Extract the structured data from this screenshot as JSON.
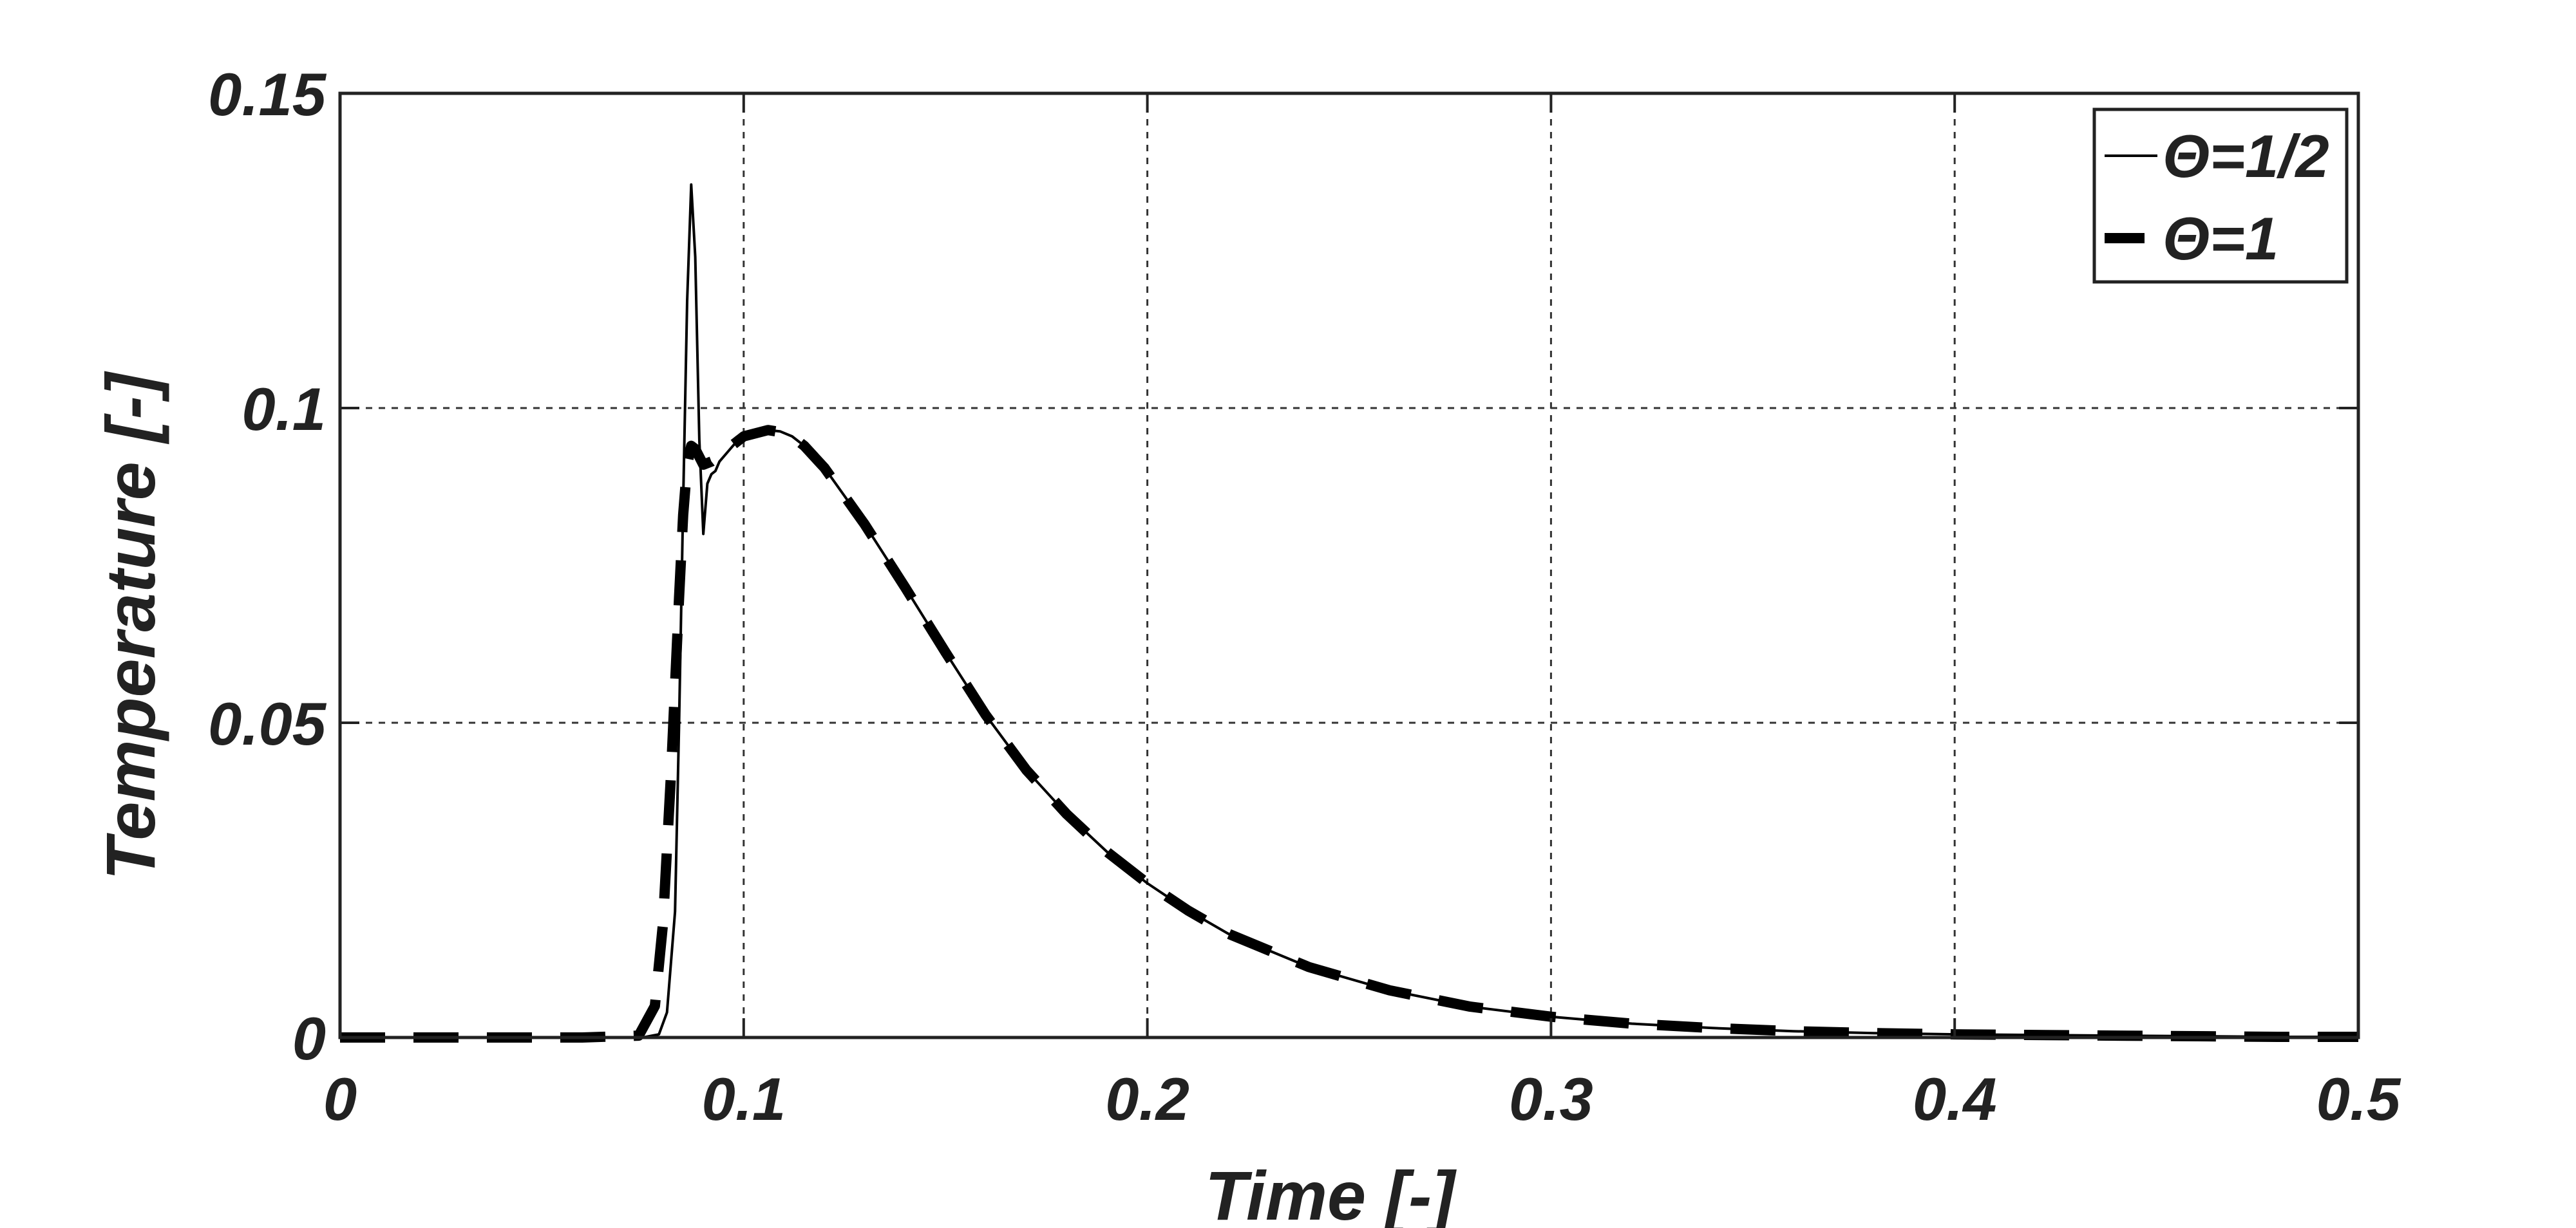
{
  "chart_data": {
    "type": "line",
    "title": "",
    "xlabel": "Time [-]",
    "ylabel": "Temperature [-]",
    "xlim": [
      0,
      0.5
    ],
    "ylim": [
      0,
      0.15
    ],
    "x_ticks": [
      0,
      0.1,
      0.2,
      0.3,
      0.4,
      0.5
    ],
    "y_ticks": [
      0,
      0.05,
      0.1,
      0.15
    ],
    "x_tick_labels": [
      "0",
      "0.1",
      "0.2",
      "0.3",
      "0.4",
      "0.5"
    ],
    "y_tick_labels": [
      "0",
      "0.05",
      "0.1",
      "0.15"
    ],
    "grid": true,
    "legend_position": "top-right",
    "series": [
      {
        "name": "Θ=1/2",
        "style": "solid-thin",
        "color": "#000000",
        "x": [
          0,
          0.02,
          0.04,
          0.06,
          0.075,
          0.079,
          0.081,
          0.083,
          0.084,
          0.085,
          0.086,
          0.087,
          0.088,
          0.089,
          0.09,
          0.091,
          0.092,
          0.093,
          0.094,
          0.096,
          0.098,
          0.1,
          0.103,
          0.106,
          0.109,
          0.112,
          0.115,
          0.12,
          0.13,
          0.14,
          0.15,
          0.16,
          0.17,
          0.18,
          0.19,
          0.2,
          0.21,
          0.22,
          0.24,
          0.26,
          0.28,
          0.3,
          0.32,
          0.34,
          0.36,
          0.38,
          0.4,
          0.42,
          0.44,
          0.46,
          0.48,
          0.5
        ],
        "y": [
          0,
          0,
          0,
          0,
          0,
          0.0005,
          0.004,
          0.02,
          0.05,
          0.085,
          0.117,
          0.1355,
          0.124,
          0.095,
          0.08,
          0.088,
          0.0895,
          0.09,
          0.0915,
          0.093,
          0.0945,
          0.0955,
          0.096,
          0.0965,
          0.0963,
          0.0955,
          0.094,
          0.0905,
          0.0815,
          0.0715,
          0.0612,
          0.0512,
          0.0425,
          0.0355,
          0.0295,
          0.0245,
          0.0202,
          0.0165,
          0.0112,
          0.0075,
          0.0049,
          0.0033,
          0.0022,
          0.0015,
          0.001,
          0.0007,
          0.0005,
          0.0004,
          0.0003,
          0.0002,
          0.0001,
          0.0001
        ]
      },
      {
        "name": "Θ=1",
        "style": "dashed-thick",
        "color": "#000000",
        "x": [
          0,
          0.02,
          0.04,
          0.06,
          0.074,
          0.078,
          0.08,
          0.082,
          0.084,
          0.085,
          0.086,
          0.087,
          0.088,
          0.09,
          0.092,
          0.094,
          0.096,
          0.098,
          0.1,
          0.103,
          0.106,
          0.109,
          0.112,
          0.115,
          0.12,
          0.13,
          0.14,
          0.15,
          0.16,
          0.17,
          0.18,
          0.19,
          0.2,
          0.21,
          0.22,
          0.24,
          0.26,
          0.28,
          0.3,
          0.32,
          0.34,
          0.36,
          0.38,
          0.4,
          0.42,
          0.44,
          0.46,
          0.48,
          0.5
        ],
        "y": [
          0,
          0,
          0,
          0,
          0.0003,
          0.005,
          0.018,
          0.042,
          0.07,
          0.083,
          0.091,
          0.094,
          0.0935,
          0.091,
          0.0915,
          0.0925,
          0.0935,
          0.0945,
          0.0955,
          0.096,
          0.0965,
          0.0962,
          0.0955,
          0.094,
          0.0905,
          0.0815,
          0.0715,
          0.0612,
          0.0512,
          0.0425,
          0.0355,
          0.0295,
          0.0245,
          0.0202,
          0.0165,
          0.0112,
          0.0075,
          0.0049,
          0.0033,
          0.0022,
          0.0015,
          0.001,
          0.0007,
          0.0005,
          0.0004,
          0.0003,
          0.0002,
          0.0001,
          0.0001
        ]
      }
    ]
  }
}
